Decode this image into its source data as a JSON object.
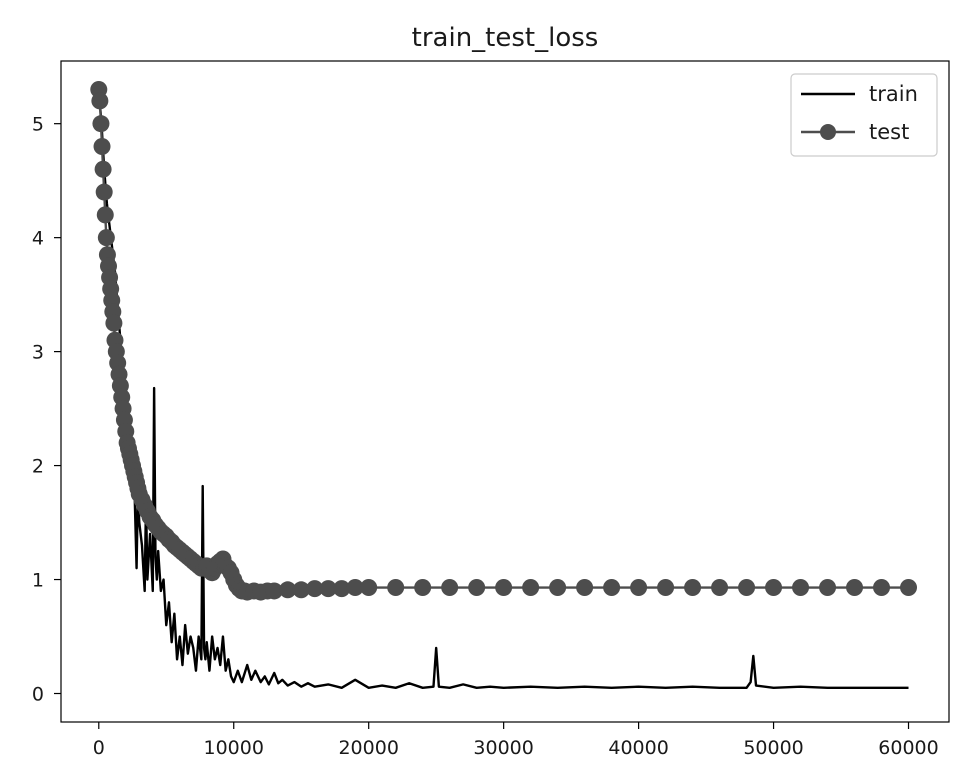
{
  "chart_data": {
    "type": "line",
    "title": "train_test_loss",
    "xlabel": "",
    "ylabel": "",
    "xlim": [
      -2800,
      63000
    ],
    "ylim": [
      -0.25,
      5.55
    ],
    "xticks": [
      0,
      10000,
      20000,
      30000,
      40000,
      50000,
      60000
    ],
    "xtick_labels": [
      "0",
      "10000",
      "20000",
      "30000",
      "40000",
      "50000",
      "60000"
    ],
    "yticks": [
      0,
      1,
      2,
      3,
      4,
      5
    ],
    "ytick_labels": [
      "0",
      "1",
      "2",
      "3",
      "4",
      "5"
    ],
    "grid": false,
    "legend": {
      "position": "top-right",
      "entries": [
        {
          "label": "train",
          "style": "line",
          "color": "#000000"
        },
        {
          "label": "test",
          "style": "line-marker",
          "color": "#4d4d4d"
        }
      ]
    },
    "series": [
      {
        "name": "train",
        "color": "#000000",
        "x": [
          0,
          200,
          400,
          600,
          800,
          1000,
          1200,
          1400,
          1600,
          1800,
          2000,
          2200,
          2400,
          2600,
          2800,
          2900,
          3000,
          3200,
          3400,
          3500,
          3600,
          3800,
          4000,
          4100,
          4200,
          4300,
          4400,
          4600,
          4800,
          5000,
          5200,
          5400,
          5600,
          5800,
          6000,
          6200,
          6400,
          6600,
          6800,
          7000,
          7200,
          7400,
          7600,
          7700,
          7800,
          7900,
          8000,
          8200,
          8400,
          8600,
          8800,
          9000,
          9200,
          9400,
          9600,
          9800,
          10000,
          10300,
          10600,
          11000,
          11300,
          11600,
          12000,
          12300,
          12600,
          13000,
          13300,
          13600,
          14000,
          14500,
          15000,
          15500,
          16000,
          17000,
          18000,
          19000,
          20000,
          21000,
          22000,
          23000,
          24000,
          24800,
          25000,
          25200,
          26000,
          27000,
          28000,
          29000,
          30000,
          32000,
          34000,
          36000,
          38000,
          40000,
          42000,
          44000,
          46000,
          48000,
          48300,
          48500,
          48700,
          50000,
          52000,
          54000,
          56000,
          58000,
          60000
        ],
        "values": [
          5.3,
          5.0,
          4.6,
          4.3,
          4.1,
          3.9,
          3.7,
          3.4,
          3.1,
          2.8,
          2.6,
          2.4,
          2.2,
          2.0,
          1.1,
          1.8,
          1.5,
          1.3,
          0.9,
          1.7,
          1.0,
          1.4,
          0.9,
          2.68,
          1.2,
          1.0,
          1.25,
          0.9,
          1.0,
          0.6,
          0.8,
          0.45,
          0.7,
          0.3,
          0.5,
          0.25,
          0.6,
          0.35,
          0.5,
          0.4,
          0.2,
          0.5,
          0.3,
          1.82,
          0.4,
          0.3,
          0.45,
          0.2,
          0.5,
          0.3,
          0.4,
          0.25,
          0.5,
          0.2,
          0.3,
          0.15,
          0.1,
          0.2,
          0.1,
          0.25,
          0.12,
          0.2,
          0.1,
          0.15,
          0.08,
          0.18,
          0.09,
          0.12,
          0.07,
          0.1,
          0.06,
          0.09,
          0.06,
          0.08,
          0.05,
          0.12,
          0.05,
          0.07,
          0.05,
          0.09,
          0.05,
          0.06,
          0.4,
          0.06,
          0.05,
          0.08,
          0.05,
          0.06,
          0.05,
          0.06,
          0.05,
          0.06,
          0.05,
          0.06,
          0.05,
          0.06,
          0.05,
          0.05,
          0.1,
          0.33,
          0.07,
          0.05,
          0.06,
          0.05,
          0.05,
          0.05,
          0.05
        ]
      },
      {
        "name": "test",
        "color": "#4d4d4d",
        "x": [
          0,
          80,
          160,
          240,
          320,
          400,
          480,
          560,
          640,
          720,
          800,
          880,
          960,
          1040,
          1120,
          1200,
          1300,
          1400,
          1500,
          1600,
          1700,
          1800,
          1900,
          2000,
          2100,
          2200,
          2300,
          2400,
          2500,
          2600,
          2700,
          2800,
          2900,
          3000,
          3200,
          3400,
          3600,
          3800,
          4000,
          4200,
          4400,
          4600,
          4800,
          5000,
          5200,
          5400,
          5600,
          5800,
          6000,
          6200,
          6400,
          6600,
          6800,
          7000,
          7200,
          7400,
          7600,
          7800,
          8000,
          8200,
          8400,
          8600,
          8800,
          9000,
          9200,
          9400,
          9600,
          9800,
          10000,
          10200,
          10400,
          10600,
          10800,
          11000,
          11500,
          12000,
          12500,
          13000,
          14000,
          15000,
          16000,
          17000,
          18000,
          19000,
          20000,
          22000,
          24000,
          26000,
          28000,
          30000,
          32000,
          34000,
          36000,
          38000,
          40000,
          42000,
          44000,
          46000,
          48000,
          50000,
          52000,
          54000,
          56000,
          58000,
          60000
        ],
        "values": [
          5.3,
          5.2,
          5.0,
          4.8,
          4.6,
          4.4,
          4.2,
          4.0,
          3.85,
          3.75,
          3.65,
          3.55,
          3.45,
          3.35,
          3.25,
          3.1,
          3.0,
          2.9,
          2.8,
          2.7,
          2.6,
          2.5,
          2.4,
          2.3,
          2.2,
          2.15,
          2.1,
          2.05,
          2.0,
          1.95,
          1.9,
          1.85,
          1.8,
          1.75,
          1.7,
          1.65,
          1.6,
          1.55,
          1.52,
          1.48,
          1.45,
          1.42,
          1.4,
          1.38,
          1.35,
          1.33,
          1.3,
          1.28,
          1.26,
          1.24,
          1.22,
          1.2,
          1.18,
          1.16,
          1.14,
          1.12,
          1.1,
          1.1,
          1.12,
          1.08,
          1.06,
          1.1,
          1.14,
          1.16,
          1.18,
          1.12,
          1.1,
          1.06,
          1.0,
          0.95,
          0.92,
          0.9,
          0.9,
          0.89,
          0.9,
          0.89,
          0.9,
          0.9,
          0.91,
          0.91,
          0.92,
          0.92,
          0.92,
          0.93,
          0.93,
          0.93,
          0.93,
          0.93,
          0.93,
          0.93,
          0.93,
          0.93,
          0.93,
          0.93,
          0.93,
          0.93,
          0.93,
          0.93,
          0.93,
          0.93,
          0.93,
          0.93,
          0.93,
          0.93,
          0.93
        ]
      }
    ]
  }
}
